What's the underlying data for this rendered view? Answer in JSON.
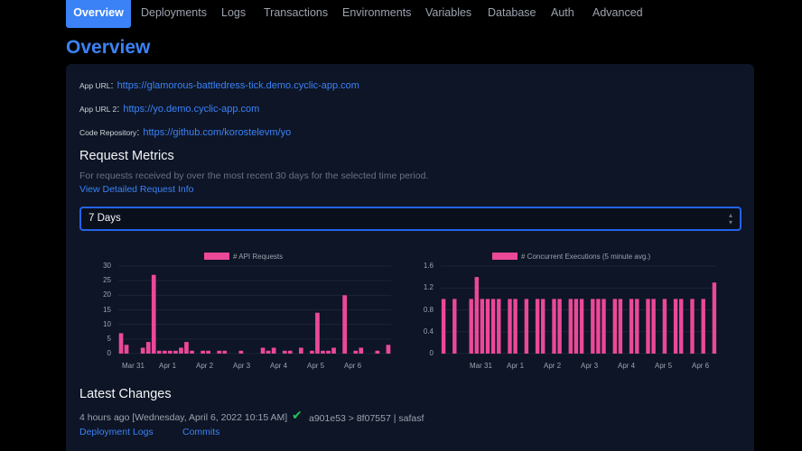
{
  "nav": {
    "tabs": [
      {
        "label": "Overview",
        "active": true
      },
      {
        "label": "Deployments"
      },
      {
        "label": "Logs"
      },
      {
        "label": "Transactions"
      },
      {
        "label": "Environments"
      },
      {
        "label": "Variables"
      },
      {
        "label": "Database"
      },
      {
        "label": "Auth"
      },
      {
        "label": "Advanced"
      }
    ]
  },
  "page": {
    "title": "Overview"
  },
  "info": {
    "app_url_label": "App URL",
    "app_url": "https://glamorous-battledress-tick.demo.cyclic-app.com",
    "app_url2_label": "App URL 2",
    "app_url2": "https://yo.demo.cyclic-app.com",
    "repo_label": "Code Repository",
    "repo_url": "https://github.com/korostelevm/yo"
  },
  "metrics": {
    "heading": "Request Metrics",
    "description": "For requests received by over the most recent 30 days for the selected time period.",
    "detail_link": "View Detailed Request Info",
    "period_select": "7 Days"
  },
  "chart_data": [
    {
      "type": "bar",
      "series": [
        {
          "name": "# API Requests",
          "values": [
            7,
            3,
            0,
            0,
            2,
            4,
            27,
            1,
            1,
            1,
            1,
            2,
            4,
            1,
            0,
            1,
            1,
            0,
            1,
            1,
            0,
            0,
            1,
            0,
            0,
            0,
            2,
            1,
            2,
            0,
            1,
            1,
            0,
            2,
            0,
            1,
            14,
            1,
            1,
            2,
            0,
            20,
            0,
            1,
            2,
            0,
            0,
            1,
            0,
            3
          ]
        }
      ],
      "x_ticks": [
        "Mar 31",
        "Apr 1",
        "Apr 2",
        "Apr 3",
        "Apr 4",
        "Apr 5",
        "Apr 6"
      ],
      "y_ticks": [
        "0",
        "5",
        "10",
        "15",
        "20",
        "25",
        "30"
      ],
      "ylim": [
        0,
        30
      ],
      "legend": "top-center"
    },
    {
      "type": "bar",
      "series": [
        {
          "name": "# Concurrent Executions (5 minute avg.)",
          "values": [
            1,
            0,
            1,
            0,
            0,
            1,
            1.4,
            1,
            1,
            1,
            1,
            0,
            1,
            1,
            0,
            1,
            0,
            1,
            1,
            0,
            1,
            1,
            0,
            1,
            1,
            1,
            0,
            1,
            1,
            1,
            0,
            1,
            1,
            0,
            1,
            1,
            0,
            1,
            1,
            0,
            1,
            0,
            1,
            1,
            0,
            1,
            0,
            1,
            0,
            1.3
          ]
        }
      ],
      "x_ticks": [
        "Mar 31",
        "Apr 1",
        "Apr 2",
        "Apr 3",
        "Apr 4",
        "Apr 5",
        "Apr 6"
      ],
      "y_ticks": [
        "0",
        "0.4",
        "0.8",
        "1.2",
        "1.6"
      ],
      "ylim": [
        0,
        1.6
      ],
      "legend": "top-center"
    }
  ],
  "changes": {
    "heading": "Latest Changes",
    "time_text": "4 hours ago [Wednesday, April 6, 2022 10:15 AM]",
    "commit_text": "a901e53 > 8f07557 | safasf",
    "deployment_logs_link": "Deployment Logs",
    "commits_link": "Commits"
  },
  "colors": {
    "accent": "#3b82f6",
    "bar": "#ec4899",
    "success": "#22c55e"
  },
  "icons": {
    "status": "check-icon",
    "select": "chevron-updown-icon"
  }
}
